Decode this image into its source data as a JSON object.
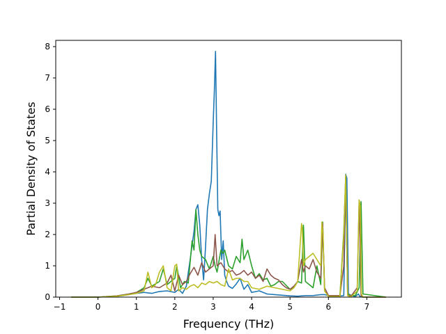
{
  "chart_data": {
    "type": "line",
    "xlabel": "Frequency (THz)",
    "ylabel": "Partial Density of States",
    "xlim": [
      -1.1,
      7.9
    ],
    "ylim": [
      0,
      8.2
    ],
    "xticks": [
      -1,
      0,
      1,
      2,
      3,
      4,
      5,
      6,
      7
    ],
    "yticks": [
      0,
      1,
      2,
      3,
      4,
      5,
      6,
      7,
      8
    ],
    "grid": false,
    "legend": "none",
    "series": [
      {
        "color": "#1f77b4",
        "x": [
          -0.7,
          0.0,
          0.5,
          0.8,
          1.0,
          1.2,
          1.4,
          1.6,
          1.8,
          2.0,
          2.1,
          2.2,
          2.3,
          2.4,
          2.5,
          2.55,
          2.6,
          2.65,
          2.7,
          2.75,
          2.8,
          2.85,
          2.9,
          2.95,
          3.0,
          3.03,
          3.06,
          3.09,
          3.12,
          3.15,
          3.18,
          3.22,
          3.26,
          3.3,
          3.35,
          3.4,
          3.5,
          3.6,
          3.7,
          3.8,
          3.9,
          4.0,
          4.2,
          4.4,
          4.6,
          4.8,
          5.0,
          5.2,
          5.4,
          5.6,
          5.8,
          5.9,
          6.0,
          6.2,
          6.4,
          6.45,
          6.48,
          6.52,
          6.6,
          6.7,
          6.78,
          6.82,
          6.9,
          7.5
        ],
        "y": [
          0,
          0,
          0.03,
          0.08,
          0.12,
          0.15,
          0.12,
          0.18,
          0.2,
          0.15,
          0.25,
          0.12,
          0.35,
          1.2,
          2.1,
          2.8,
          2.95,
          2.3,
          1.2,
          0.55,
          1.6,
          2.8,
          3.3,
          3.7,
          5.6,
          6.6,
          7.85,
          5.2,
          2.8,
          2.6,
          2.75,
          1.2,
          1.8,
          0.7,
          0.5,
          0.35,
          0.28,
          0.42,
          0.6,
          0.25,
          0.4,
          0.15,
          0.2,
          0.1,
          0.08,
          0.06,
          0.04,
          0.03,
          0.05,
          0.05,
          0.08,
          0.08,
          0.05,
          0.02,
          0.05,
          3.92,
          3.8,
          0.1,
          0.05,
          0.02,
          0.1,
          0.02,
          0.0,
          0.0
        ]
      },
      {
        "color": "#2ca02c",
        "x": [
          -0.7,
          0.0,
          0.5,
          0.8,
          1.0,
          1.2,
          1.3,
          1.4,
          1.6,
          1.7,
          1.8,
          2.0,
          2.05,
          2.15,
          2.25,
          2.35,
          2.45,
          2.5,
          2.55,
          2.6,
          2.65,
          2.7,
          2.8,
          2.9,
          3.0,
          3.05,
          3.1,
          3.2,
          3.25,
          3.3,
          3.4,
          3.5,
          3.6,
          3.7,
          3.75,
          3.8,
          3.9,
          4.0,
          4.1,
          4.2,
          4.3,
          4.4,
          4.5,
          4.6,
          4.7,
          4.8,
          5.0,
          5.1,
          5.2,
          5.3,
          5.35,
          5.4,
          5.5,
          5.6,
          5.7,
          5.8,
          5.85,
          5.9,
          6.0,
          6.1,
          6.3,
          6.4,
          6.45,
          6.5,
          6.6,
          6.7,
          6.8,
          6.85,
          6.9,
          7.5
        ],
        "y": [
          0,
          0,
          0.04,
          0.1,
          0.15,
          0.3,
          0.6,
          0.35,
          0.5,
          0.9,
          0.4,
          0.6,
          1.0,
          0.3,
          0.5,
          0.45,
          1.8,
          1.5,
          2.8,
          2.0,
          1.5,
          1.3,
          1.2,
          0.9,
          1.3,
          1.0,
          0.8,
          1.5,
          1.4,
          1.5,
          1.0,
          0.9,
          1.3,
          1.1,
          1.85,
          1.2,
          1.5,
          1.0,
          0.6,
          0.75,
          0.55,
          0.6,
          0.35,
          0.4,
          0.5,
          0.5,
          0.25,
          0.3,
          0.5,
          0.45,
          2.3,
          0.5,
          0.4,
          0.3,
          1.0,
          0.4,
          2.4,
          0.2,
          0.05,
          0.05,
          0.05,
          2.1,
          3.85,
          0.1,
          0.05,
          0.05,
          0.3,
          3.05,
          0.1,
          0.0
        ]
      },
      {
        "color": "#8c564b",
        "x": [
          -0.7,
          0.0,
          0.5,
          0.8,
          1.0,
          1.2,
          1.4,
          1.6,
          1.8,
          1.9,
          2.0,
          2.1,
          2.2,
          2.3,
          2.4,
          2.5,
          2.6,
          2.7,
          2.8,
          2.9,
          3.0,
          3.05,
          3.1,
          3.2,
          3.3,
          3.4,
          3.5,
          3.6,
          3.7,
          3.8,
          3.9,
          4.0,
          4.1,
          4.2,
          4.3,
          4.4,
          4.5,
          4.6,
          4.7,
          4.8,
          4.9,
          5.0,
          5.1,
          5.2,
          5.3,
          5.35,
          5.4,
          5.5,
          5.6,
          5.7,
          5.8,
          5.85,
          5.9,
          6.0,
          6.3,
          6.4,
          6.45,
          6.5,
          6.6,
          6.75,
          6.8,
          6.85,
          6.9,
          7.5
        ],
        "y": [
          0,
          0,
          0.04,
          0.1,
          0.15,
          0.25,
          0.35,
          0.3,
          0.45,
          0.7,
          0.2,
          0.7,
          0.4,
          0.5,
          0.75,
          0.95,
          0.7,
          1.1,
          0.8,
          0.9,
          1.0,
          2.0,
          1.0,
          1.1,
          0.9,
          0.8,
          0.85,
          0.7,
          0.75,
          0.85,
          0.7,
          0.8,
          0.6,
          0.7,
          0.5,
          0.9,
          0.7,
          0.6,
          0.55,
          0.4,
          0.3,
          0.25,
          0.35,
          0.5,
          1.2,
          0.8,
          1.0,
          0.9,
          1.2,
          0.8,
          0.6,
          2.35,
          0.3,
          0.05,
          0.05,
          1.0,
          3.8,
          0.05,
          0.05,
          0.3,
          3.1,
          0.05,
          0.0,
          0.0
        ]
      },
      {
        "color": "#bcbd22",
        "x": [
          -0.7,
          0.0,
          0.5,
          0.8,
          1.0,
          1.2,
          1.3,
          1.4,
          1.5,
          1.6,
          1.7,
          1.8,
          1.9,
          2.0,
          2.05,
          2.1,
          2.2,
          2.3,
          2.4,
          2.5,
          2.6,
          2.7,
          2.8,
          2.9,
          3.0,
          3.1,
          3.2,
          3.3,
          3.4,
          3.5,
          3.6,
          3.7,
          3.8,
          3.9,
          4.0,
          4.2,
          4.4,
          4.6,
          4.8,
          5.0,
          5.1,
          5.2,
          5.3,
          5.32,
          5.35,
          5.4,
          5.5,
          5.6,
          5.7,
          5.8,
          5.83,
          5.86,
          5.9,
          6.0,
          6.3,
          6.4,
          6.45,
          6.5,
          6.55,
          6.6,
          6.75,
          6.8,
          6.83,
          6.86,
          6.9,
          7.5
        ],
        "y": [
          0,
          0,
          0.03,
          0.08,
          0.12,
          0.2,
          0.8,
          0.3,
          0.4,
          0.8,
          1.0,
          0.3,
          0.2,
          1.0,
          1.05,
          0.2,
          0.3,
          0.25,
          0.35,
          0.4,
          0.3,
          0.45,
          0.4,
          0.5,
          0.45,
          0.5,
          0.4,
          0.35,
          0.9,
          0.55,
          0.6,
          0.6,
          0.5,
          0.5,
          0.3,
          0.25,
          0.35,
          0.3,
          0.25,
          0.2,
          0.3,
          0.5,
          2.35,
          2.2,
          1.0,
          1.2,
          1.3,
          1.4,
          1.2,
          1.0,
          2.4,
          2.0,
          0.2,
          0.02,
          0.02,
          2.0,
          3.9,
          0.05,
          0.02,
          0.02,
          0.2,
          3.1,
          2.9,
          0.1,
          0.0,
          0.0
        ]
      }
    ]
  }
}
